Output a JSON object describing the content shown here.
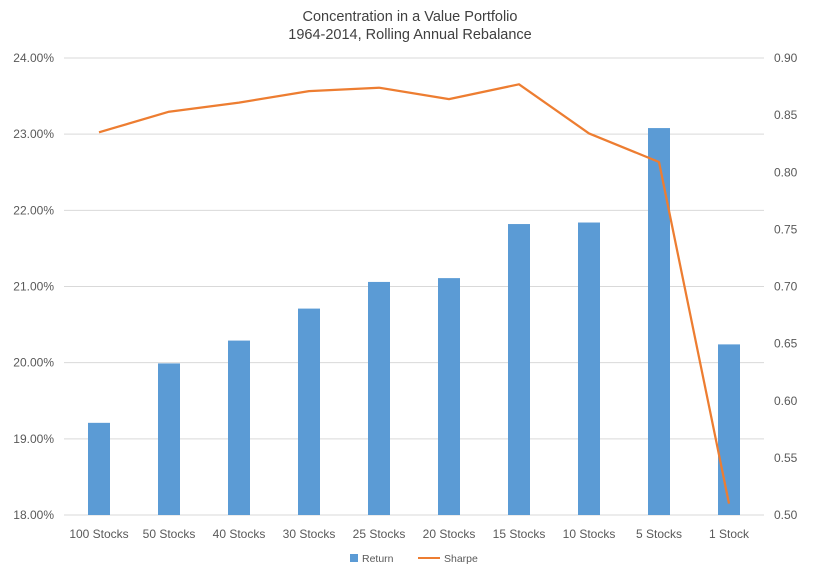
{
  "chart_data": {
    "type": "bar",
    "title": "Concentration in a Value Portfolio",
    "subtitle": "1964-2014, Rolling Annual Rebalance",
    "categories": [
      "100 Stocks",
      "50 Stocks",
      "40 Stocks",
      "30 Stocks",
      "25 Stocks",
      "20 Stocks",
      "15 Stocks",
      "10 Stocks",
      "5 Stocks",
      "1 Stock"
    ],
    "series": [
      {
        "name": "Return",
        "type": "bar",
        "axis": "left",
        "color": "#5B9BD5",
        "values": [
          19.21,
          19.99,
          20.29,
          20.71,
          21.06,
          21.11,
          21.82,
          21.84,
          23.08,
          20.24
        ]
      },
      {
        "name": "Sharpe",
        "type": "line",
        "axis": "right",
        "color": "#ED7D31",
        "values": [
          0.835,
          0.853,
          0.861,
          0.871,
          0.874,
          0.864,
          0.877,
          0.834,
          0.809,
          0.51
        ]
      }
    ],
    "y_left": {
      "min": 18,
      "max": 24,
      "step": 1,
      "tick_labels": [
        "18.00%",
        "19.00%",
        "20.00%",
        "21.00%",
        "22.00%",
        "23.00%",
        "24.00%"
      ]
    },
    "y_right": {
      "min": 0.5,
      "max": 0.9,
      "step": 0.05,
      "tick_labels": [
        "0.50",
        "0.55",
        "0.60",
        "0.65",
        "0.70",
        "0.75",
        "0.80",
        "0.85",
        "0.90"
      ]
    },
    "grid": true,
    "gridline_color": "#D9D9D9",
    "legend_position": "bottom"
  }
}
